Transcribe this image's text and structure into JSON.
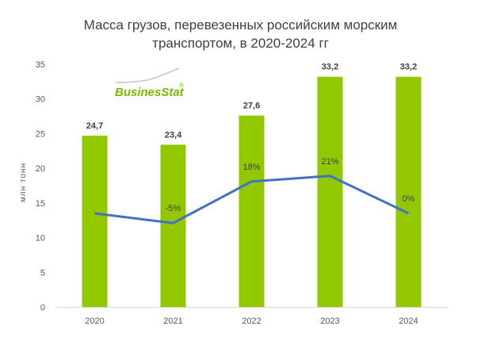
{
  "chart_data": {
    "type": "bar",
    "title_lines": [
      "Масса грузов, перевезенных российским морским",
      "транспортом, в 2020-2024 гг"
    ],
    "ylabel": "млн тонн",
    "ylim": [
      0,
      35
    ],
    "yticks": [
      0,
      5,
      10,
      15,
      20,
      25,
      30,
      35
    ],
    "categories": [
      "2020",
      "2021",
      "2022",
      "2023",
      "2024"
    ],
    "values": [
      24.7,
      23.4,
      27.6,
      33.2,
      33.2
    ],
    "value_labels": [
      "24,7",
      "23,4",
      "27,6",
      "33,2",
      "33,2"
    ],
    "growth_line": {
      "values": [
        13.5,
        12.1,
        18.1,
        18.9,
        13.5
      ],
      "labels": [
        "",
        "-5%",
        "18%",
        "21%",
        "0%"
      ]
    },
    "grid": false,
    "bar_color": "#92c800",
    "line_color": "#4472c4"
  },
  "logo": {
    "text": "BusinesStat",
    "mark": "®"
  }
}
